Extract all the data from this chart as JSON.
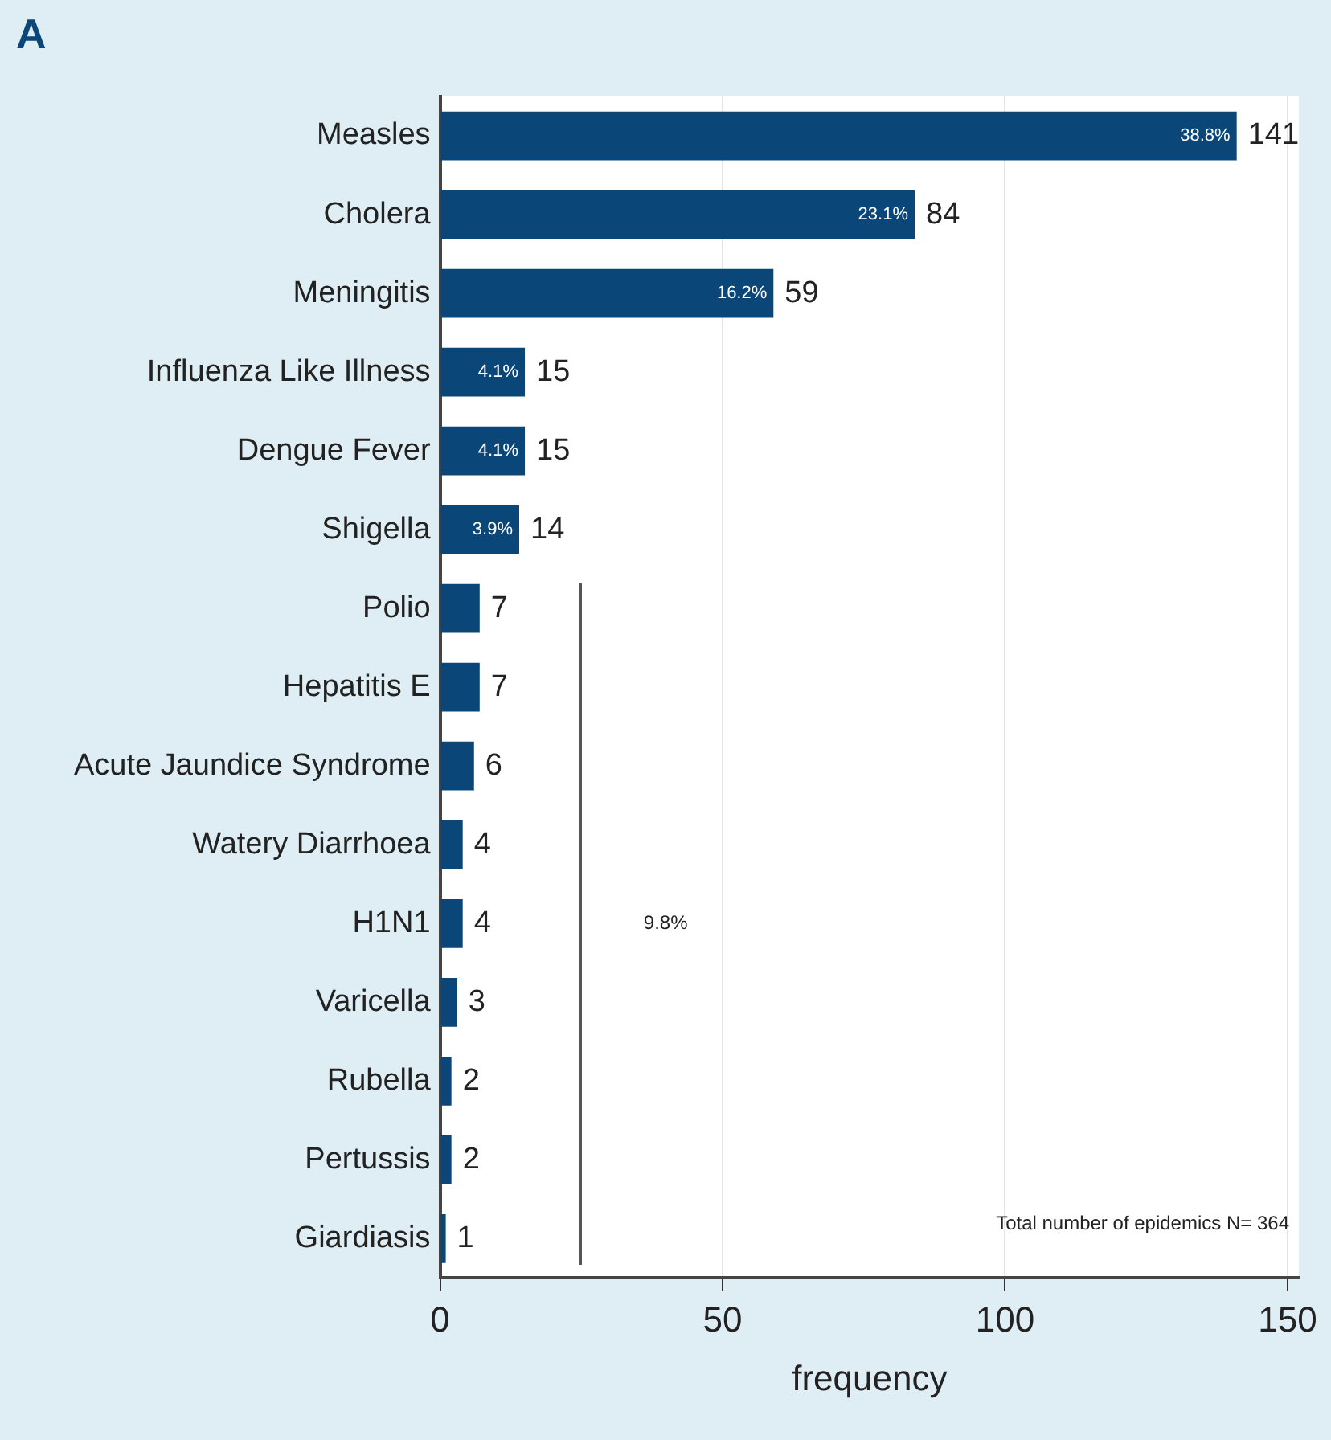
{
  "chart_data": {
    "type": "bar",
    "orientation": "horizontal",
    "title": "A",
    "xlabel": "frequency",
    "categories": [
      "Measles",
      "Cholera",
      "Meningitis",
      "Influenza Like Illness",
      "Dengue Fever",
      "Shigella",
      "Polio",
      "Hepatitis E",
      "Acute Jaundice Syndrome",
      "Watery Diarrhoea",
      "H1N1",
      "Varicella",
      "Rubella",
      "Pertussis",
      "Giardiasis"
    ],
    "values": [
      141,
      84,
      59,
      15,
      15,
      14,
      7,
      7,
      6,
      4,
      4,
      3,
      2,
      2,
      1
    ],
    "color": "#0a4677",
    "xlim": [
      0,
      152
    ],
    "xticks": [
      0,
      50,
      100,
      150
    ],
    "grid": "x",
    "data_labels": true,
    "annotations": [
      {
        "text": "38.8%",
        "x": 141,
        "y": "Measles"
      },
      {
        "text": "23.1%",
        "x": 84,
        "y": "Cholera"
      },
      {
        "text": "16.2%",
        "x": 59,
        "y": "Meningitis"
      },
      {
        "text": "4.1%",
        "x": 15,
        "y": "Influenza Like Illness"
      },
      {
        "text": "4.1%",
        "x": 15,
        "y": "Dengue Fever"
      },
      {
        "text": "3.9%",
        "x": 14,
        "y": "Shigella"
      },
      "9.8%",
      "Total number of epidemics N= 364"
    ]
  }
}
